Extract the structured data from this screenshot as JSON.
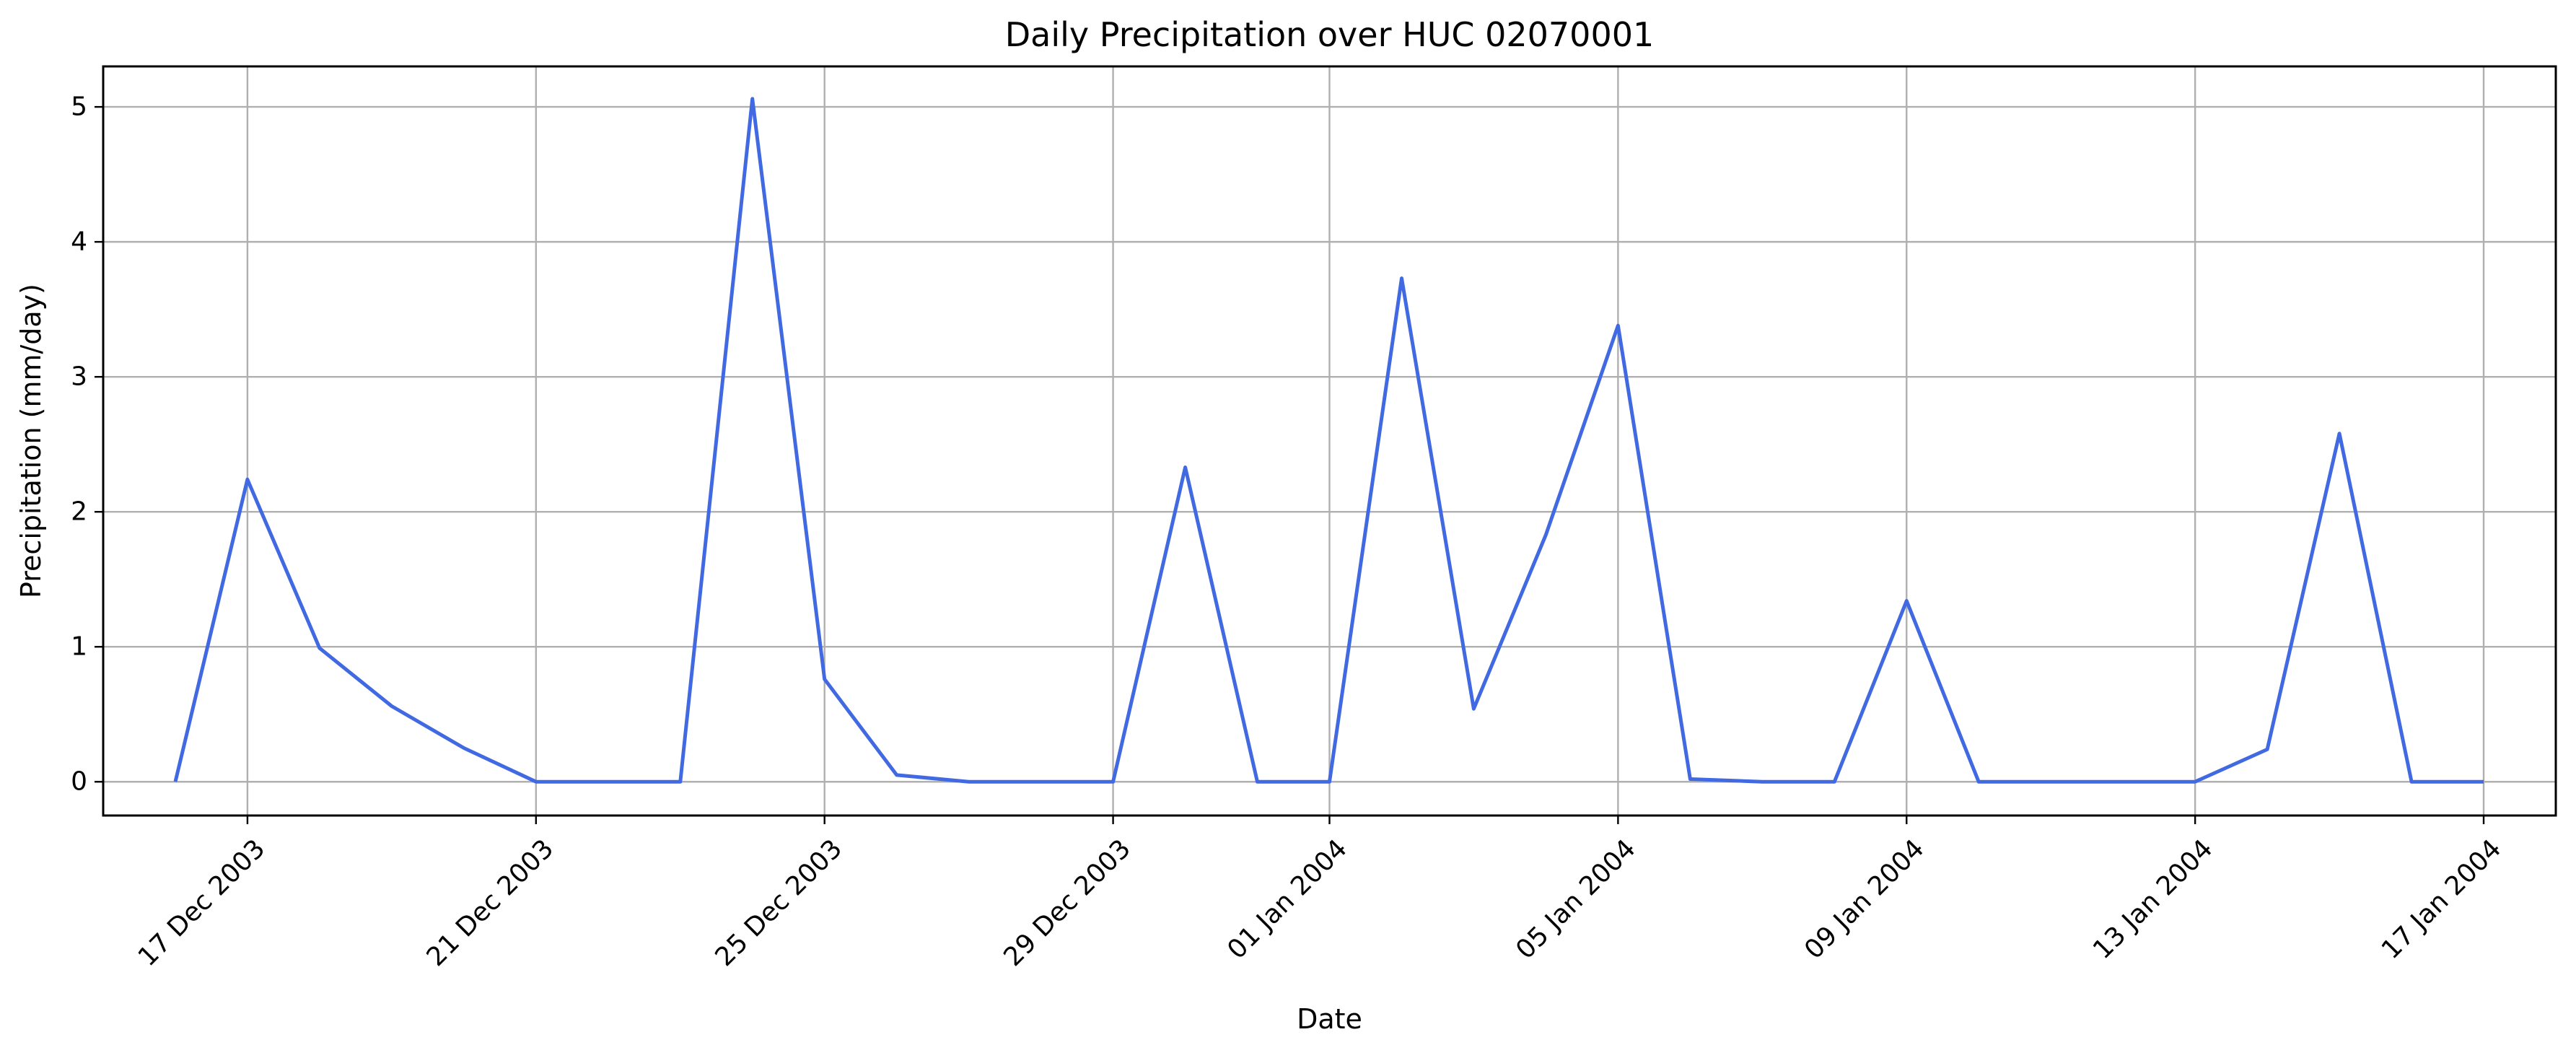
{
  "chart_data": {
    "type": "line",
    "title": "Daily Precipitation over HUC 02070001",
    "xlabel": "Date",
    "ylabel": "Precipitation (mm/day)",
    "xlim": [
      "2003-12-15",
      "2004-01-18"
    ],
    "ylim": [
      -0.25,
      5.3
    ],
    "grid": true,
    "line_color": "#4169E1",
    "x_ticks": [
      {
        "date": "2003-12-17",
        "label": "17 Dec 2003"
      },
      {
        "date": "2003-12-21",
        "label": "21 Dec 2003"
      },
      {
        "date": "2003-12-25",
        "label": "25 Dec 2003"
      },
      {
        "date": "2003-12-29",
        "label": "29 Dec 2003"
      },
      {
        "date": "2004-01-01",
        "label": "01 Jan 2004"
      },
      {
        "date": "2004-01-05",
        "label": "05 Jan 2004"
      },
      {
        "date": "2004-01-09",
        "label": "09 Jan 2004"
      },
      {
        "date": "2004-01-13",
        "label": "13 Jan 2004"
      },
      {
        "date": "2004-01-17",
        "label": "17 Jan 2004"
      }
    ],
    "y_ticks": [
      {
        "value": 0,
        "label": "0"
      },
      {
        "value": 1,
        "label": "1"
      },
      {
        "value": 2,
        "label": "2"
      },
      {
        "value": 3,
        "label": "3"
      },
      {
        "value": 4,
        "label": "4"
      },
      {
        "value": 5,
        "label": "5"
      }
    ],
    "series": [
      {
        "x": [
          "2003-12-16",
          "2003-12-17",
          "2003-12-18",
          "2003-12-19",
          "2003-12-20",
          "2003-12-21",
          "2003-12-22",
          "2003-12-23",
          "2003-12-24",
          "2003-12-25",
          "2003-12-26",
          "2003-12-27",
          "2003-12-28",
          "2003-12-29",
          "2003-12-30",
          "2003-12-31",
          "2004-01-01",
          "2004-01-02",
          "2004-01-03",
          "2004-01-04",
          "2004-01-05",
          "2004-01-06",
          "2004-01-07",
          "2004-01-08",
          "2004-01-09",
          "2004-01-10",
          "2004-01-11",
          "2004-01-12",
          "2004-01-13",
          "2004-01-14",
          "2004-01-15",
          "2004-01-16",
          "2004-01-17"
        ],
        "y": [
          0,
          2.24,
          0.99,
          0.56,
          0.25,
          0.0,
          0.0,
          0.0,
          5.06,
          0.76,
          0.05,
          0.0,
          0.0,
          0.0,
          2.33,
          0.0,
          0.0,
          3.73,
          0.54,
          1.83,
          3.38,
          0.02,
          0.0,
          0.0,
          1.34,
          0.0,
          0.0,
          0.0,
          0.0,
          0.24,
          2.58,
          0.0,
          0.0
        ]
      }
    ]
  }
}
